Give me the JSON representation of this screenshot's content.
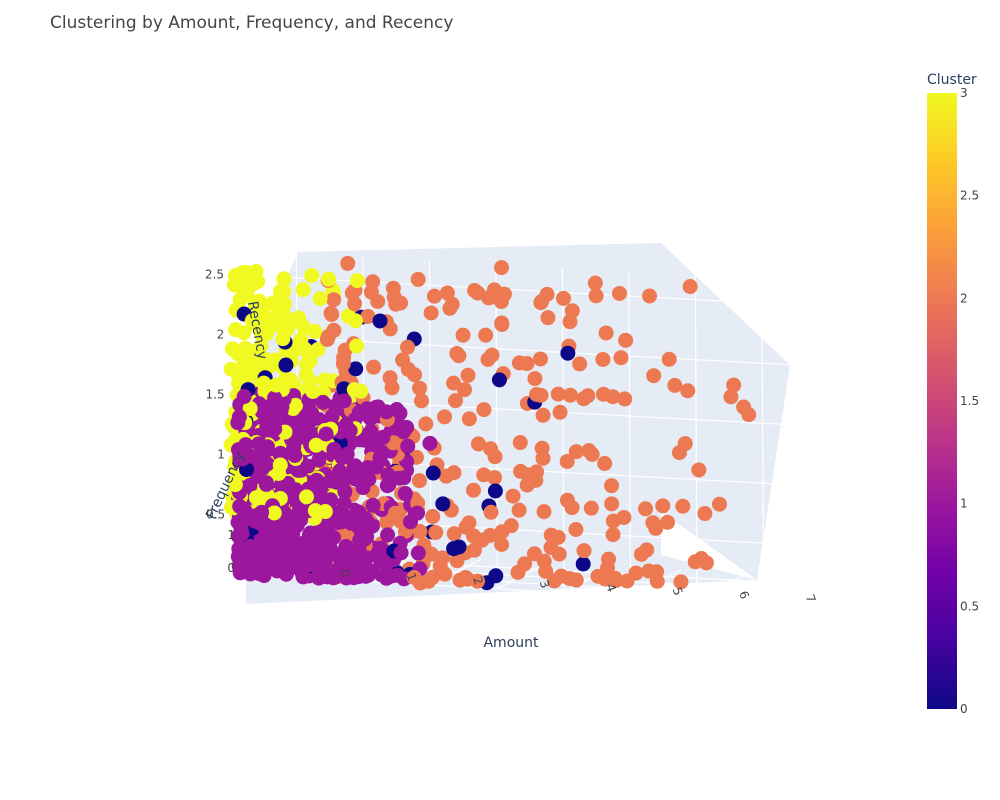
{
  "chart_data": {
    "type": "scatter",
    "dimensions": 3,
    "title": "Clustering by Amount, Frequency, and Recency",
    "axes": {
      "x": {
        "label": "Amount",
        "range": [
          -1,
          7.4
        ],
        "ticks": [
          0,
          1,
          2,
          3,
          4,
          5,
          6,
          7
        ]
      },
      "y": {
        "label": "Frequency",
        "range": [
          0,
          7
        ],
        "ticks_visible": [
          0,
          1
        ]
      },
      "z": {
        "label": "Recency",
        "range": [
          0,
          2.7
        ],
        "ticks": [
          0.5,
          1,
          1.5,
          2,
          2.5
        ]
      }
    },
    "colorbar": {
      "title": "Cluster",
      "range": [
        0,
        3
      ],
      "ticks": [
        0,
        0.5,
        1,
        1.5,
        2,
        2.5,
        3
      ],
      "colorscale": [
        "#0d0887",
        "#46039f",
        "#7201a8",
        "#9c179e",
        "#bd3786",
        "#d8576b",
        "#ed7953",
        "#fb9f3a",
        "#fdca26",
        "#f0f921"
      ]
    },
    "clusters": [
      {
        "cluster": 0,
        "color": "#0d0887",
        "approx_points": 60,
        "amount_range": [
          -0.8,
          5.0
        ],
        "frequency_range": [
          0,
          5
        ],
        "recency_range": [
          0,
          2.2
        ]
      },
      {
        "cluster": 1,
        "color": "#9c179e",
        "approx_points": 700,
        "amount_range": [
          -0.9,
          2.0
        ],
        "frequency_range": [
          0,
          2.5
        ],
        "recency_range": [
          0,
          1.5
        ]
      },
      {
        "cluster": 2,
        "color": "#ed7953",
        "approx_points": 300,
        "amount_range": [
          0.3,
          7.0
        ],
        "frequency_range": [
          0.5,
          6
        ],
        "recency_range": [
          0,
          2.6
        ]
      },
      {
        "cluster": 3,
        "color": "#f0f921",
        "approx_points": 300,
        "amount_range": [
          -1.0,
          1.0
        ],
        "frequency_range": [
          0,
          4
        ],
        "recency_range": [
          0.5,
          2.5
        ]
      }
    ]
  }
}
